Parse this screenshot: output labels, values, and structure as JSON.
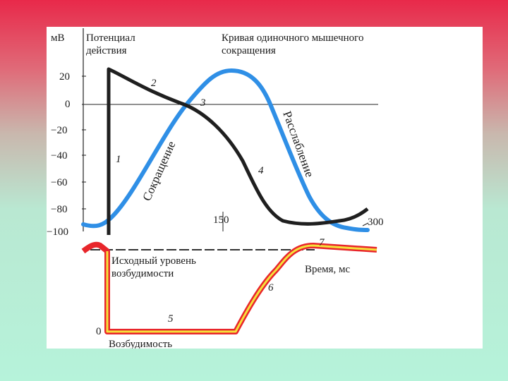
{
  "top_chart": {
    "y_unit": "мВ",
    "y_ticks": [
      "20",
      "0",
      "−20",
      "−40",
      "−60",
      "−80",
      "−100"
    ],
    "x_ticks": [
      "150",
      "300"
    ],
    "title_action_potential": [
      "Потенциал",
      "действия"
    ],
    "title_contraction_curve": [
      "Кривая одиночного мышечного",
      "сокращения"
    ],
    "phase_contraction_label": "Сокращение",
    "phase_relaxation_label": "Расслабление",
    "phase_numbers": [
      "1",
      "2",
      "3",
      "4"
    ],
    "colors": {
      "action_potential": "#1f1f1f",
      "contraction_curve": "#2f8fe6"
    }
  },
  "bottom_chart": {
    "baseline_label": [
      "Исходный уровень",
      "возбудимости"
    ],
    "time_label": "Время, мс",
    "zero_label": "0",
    "y_label": "Возбудимость",
    "phase_numbers": [
      "5",
      "6",
      "7"
    ],
    "colors": {
      "excitability_outer": "#e8262b",
      "excitability_inner": "#f5e23a",
      "baseline": "#333333"
    }
  }
}
